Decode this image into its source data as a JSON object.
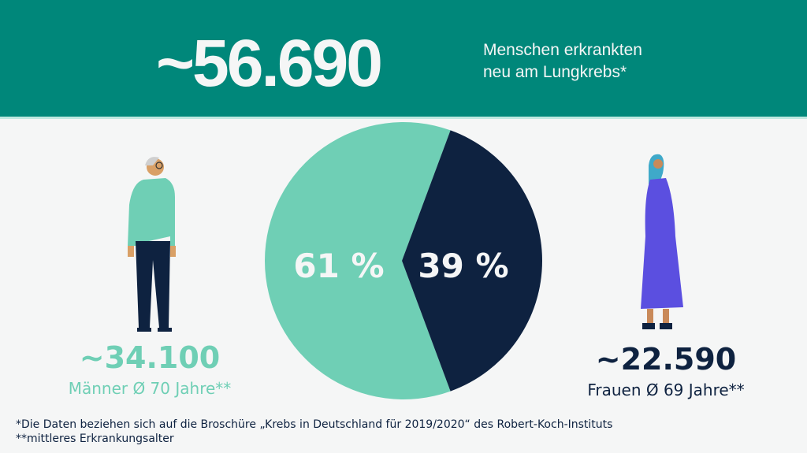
{
  "header": {
    "total": "~56.690",
    "subtitle_line1": "Menschen erkrankten",
    "subtitle_line2": "neu am Lungkrebs*"
  },
  "chart_data": {
    "type": "pie",
    "slices": [
      {
        "label": "61 %",
        "name": "Männer",
        "value": 61,
        "color": "#6fcfb5"
      },
      {
        "label": "39 %",
        "name": "Frauen",
        "value": 39,
        "color": "#0e2240"
      }
    ]
  },
  "men": {
    "count": "~34.100",
    "label": "Männer Ø 70 Jahre**",
    "color": "#6fcfb5"
  },
  "women": {
    "count": "~22.590",
    "label": "Frauen Ø 69 Jahre**",
    "color": "#0e2240"
  },
  "footnotes": {
    "line1": "*Die Daten beziehen sich auf die Broschüre „Krebs in Deutschland für 2019/2020“ des Robert-Koch-Instituts",
    "line2": "**mittleres Erkrankungsalter"
  }
}
